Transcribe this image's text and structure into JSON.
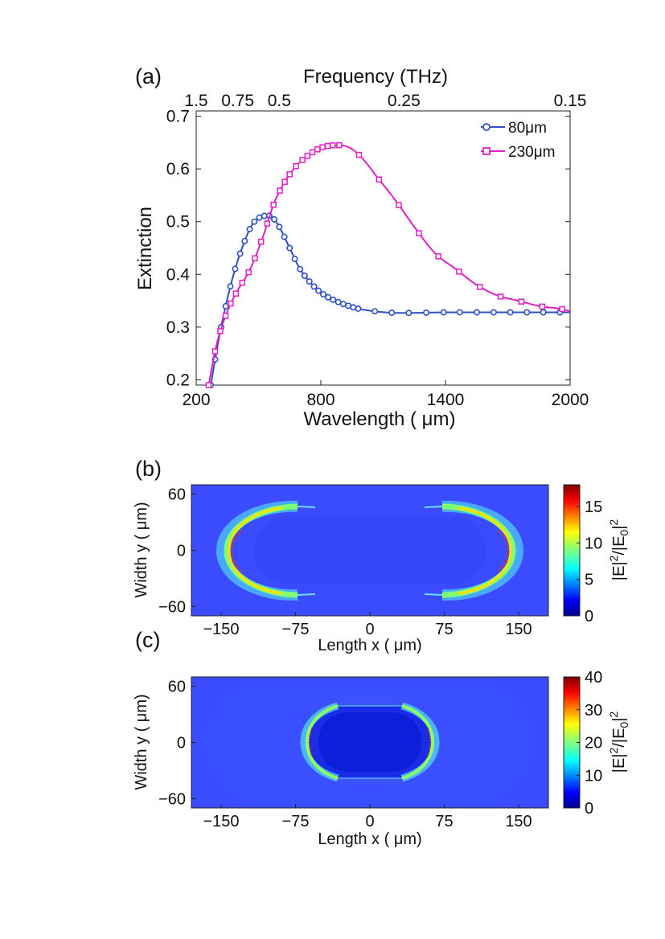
{
  "chart_data": [
    {
      "type": "line",
      "panel_label": "(a)",
      "xlabel": "Wavelength ( μm)",
      "ylabel": "Extinction",
      "top_axis_label": "Frequency (THz)",
      "xlim": [
        200,
        2000
      ],
      "ylim": [
        0.19,
        0.71
      ],
      "xticks": [
        200,
        800,
        1400,
        2000
      ],
      "xtick_labels": [
        "200",
        "800",
        "1400",
        "2000"
      ],
      "yticks": [
        0.2,
        0.3,
        0.4,
        0.5,
        0.6,
        0.7
      ],
      "ytick_labels": [
        "0.2",
        "0.3",
        "0.4",
        "0.5",
        "0.6",
        "0.7"
      ],
      "top_ticks": [
        {
          "label": "1.5",
          "wavelength": 200
        },
        {
          "label": "0.75",
          "wavelength": 400
        },
        {
          "label": "0.5",
          "wavelength": 600
        },
        {
          "label": "0.25",
          "wavelength": 1200
        },
        {
          "label": "0.15",
          "wavelength": 2000
        }
      ],
      "legend_position": "top-right",
      "grid": false,
      "series": [
        {
          "name": "80μm",
          "marker": "circle",
          "color": "#3050c8",
          "x": [
            270,
            320,
            380,
            440,
            480,
            520,
            560,
            600,
            650,
            700,
            760,
            820,
            900,
            980,
            1060,
            1150,
            1250,
            1400,
            1600,
            1800,
            2000
          ],
          "y": [
            0.19,
            0.3,
            0.4,
            0.47,
            0.5,
            0.51,
            0.51,
            0.49,
            0.45,
            0.41,
            0.38,
            0.36,
            0.345,
            0.335,
            0.33,
            0.327,
            0.327,
            0.328,
            0.328,
            0.328,
            0.328
          ]
        },
        {
          "name": "230μm",
          "marker": "square",
          "color": "#e020c0",
          "x": [
            260,
            300,
            350,
            400,
            460,
            520,
            580,
            650,
            720,
            800,
            880,
            940,
            1000,
            1080,
            1160,
            1250,
            1350,
            1450,
            1550,
            1650,
            1750,
            1850,
            1950,
            2000
          ],
          "y": [
            0.19,
            0.27,
            0.33,
            0.37,
            0.41,
            0.47,
            0.54,
            0.59,
            0.62,
            0.64,
            0.645,
            0.64,
            0.62,
            0.58,
            0.54,
            0.49,
            0.44,
            0.41,
            0.38,
            0.36,
            0.35,
            0.34,
            0.335,
            0.33
          ]
        }
      ]
    },
    {
      "type": "heatmap",
      "panel_label": "(b)",
      "xlabel": "Length x ( μm)",
      "ylabel": "Width y ( μm)",
      "colorbar_label": "|E|²/|E₀|²",
      "xlim": [
        -180,
        180
      ],
      "ylim": [
        -70,
        70
      ],
      "xticks": [
        -150,
        -75,
        0,
        75,
        150
      ],
      "xtick_labels": [
        "−150",
        "−75",
        "0",
        "75",
        "150"
      ],
      "yticks": [
        -60,
        0,
        60
      ],
      "ytick_labels": [
        "−60",
        "0",
        "60"
      ],
      "colorbar_range": [
        0,
        18
      ],
      "colorbar_ticks": [
        0,
        5,
        10,
        15
      ],
      "colorbar_tick_labels": [
        "0",
        "5",
        "10",
        "15"
      ]
    },
    {
      "type": "heatmap",
      "panel_label": "(c)",
      "xlabel": "Length x ( μm)",
      "ylabel": "Width y ( μm)",
      "colorbar_label": "|E|²/|E₀|²",
      "xlim": [
        -180,
        180
      ],
      "ylim": [
        -70,
        70
      ],
      "xticks": [
        -150,
        -75,
        0,
        75,
        150
      ],
      "xtick_labels": [
        "−150",
        "−75",
        "0",
        "75",
        "150"
      ],
      "yticks": [
        -60,
        0,
        60
      ],
      "ytick_labels": [
        "−60",
        "0",
        "60"
      ],
      "colorbar_range": [
        0,
        40
      ],
      "colorbar_ticks": [
        0,
        10,
        20,
        30,
        40
      ],
      "colorbar_tick_labels": [
        "0",
        "10",
        "20",
        "30",
        "40"
      ]
    }
  ]
}
